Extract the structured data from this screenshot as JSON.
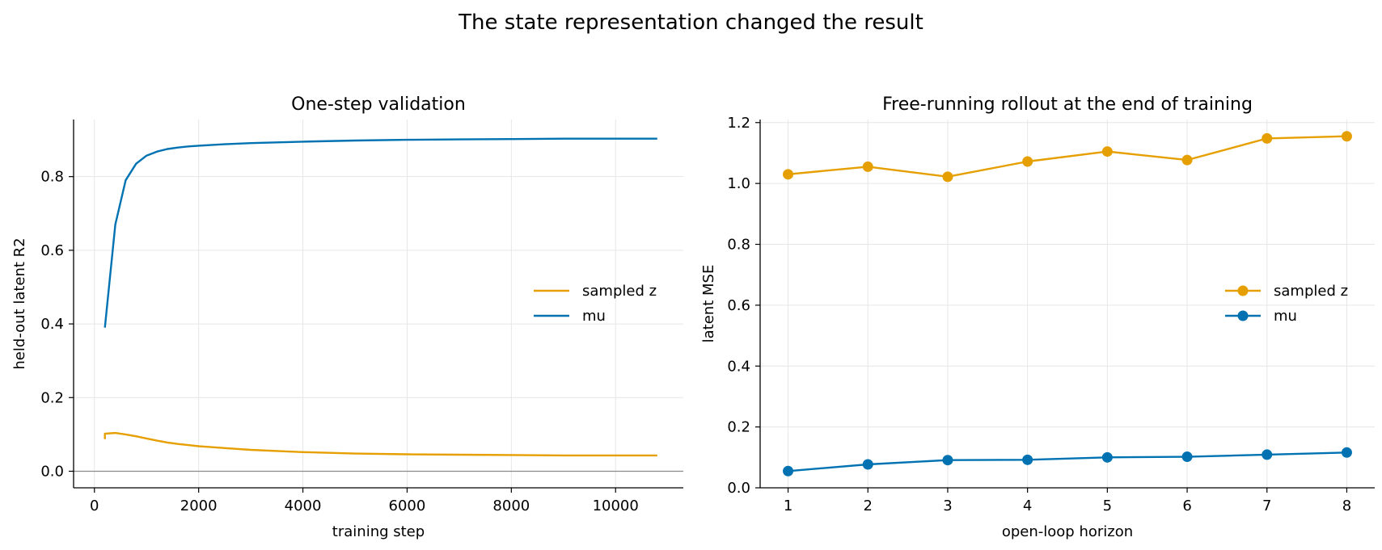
{
  "figure": {
    "suptitle": "The state representation changed the result"
  },
  "chart_data": [
    {
      "type": "line",
      "title": "One-step validation",
      "xlabel": "training step",
      "ylabel": "held-out latent R2",
      "xlim": [
        -400,
        11300
      ],
      "ylim": [
        -0.045,
        0.955
      ],
      "xticks": [
        0,
        2000,
        4000,
        6000,
        8000,
        10000
      ],
      "xtick_labels": [
        "0",
        "2000",
        "4000",
        "6000",
        "8000",
        "10000"
      ],
      "yticks": [
        0.0,
        0.2,
        0.4,
        0.6,
        0.8
      ],
      "ytick_labels": [
        "0.0",
        "0.2",
        "0.4",
        "0.6",
        "0.8"
      ],
      "grid": true,
      "reference_line_y": 0,
      "legend": "center-right",
      "series": [
        {
          "name": "sampled z",
          "color": "#E69F00",
          "x": [
            200,
            200,
            400,
            600,
            800,
            1000,
            1200,
            1400,
            1600,
            1800,
            2000,
            2500,
            3000,
            3500,
            4000,
            5000,
            6000,
            7000,
            8000,
            9000,
            10000,
            10800
          ],
          "y": [
            0.087,
            0.102,
            0.104,
            0.1,
            0.095,
            0.089,
            0.083,
            0.078,
            0.074,
            0.071,
            0.068,
            0.063,
            0.058,
            0.055,
            0.052,
            0.048,
            0.046,
            0.045,
            0.044,
            0.043,
            0.043,
            0.043
          ]
        },
        {
          "name": "mu",
          "color": "#0072B2",
          "x": [
            200,
            400,
            600,
            800,
            1000,
            1200,
            1400,
            1600,
            1800,
            2000,
            2500,
            3000,
            3500,
            4000,
            5000,
            6000,
            7000,
            8000,
            9000,
            10000,
            10800
          ],
          "y": [
            0.39,
            0.67,
            0.79,
            0.835,
            0.857,
            0.868,
            0.875,
            0.879,
            0.882,
            0.884,
            0.888,
            0.891,
            0.893,
            0.895,
            0.898,
            0.9,
            0.901,
            0.902,
            0.903,
            0.903,
            0.903
          ]
        }
      ]
    },
    {
      "type": "line",
      "title": "Free-running rollout at the end of training",
      "xlabel": "open-loop horizon",
      "ylabel": "latent MSE",
      "xlim": [
        0.65,
        8.35
      ],
      "ylim": [
        0.0,
        1.21
      ],
      "xticks": [
        1,
        2,
        3,
        4,
        5,
        6,
        7,
        8
      ],
      "xtick_labels": [
        "1",
        "2",
        "3",
        "4",
        "5",
        "6",
        "7",
        "8"
      ],
      "yticks": [
        0.0,
        0.2,
        0.4,
        0.6,
        0.8,
        1.0,
        1.2
      ],
      "ytick_labels": [
        "0.0",
        "0.2",
        "0.4",
        "0.6",
        "0.8",
        "1.0",
        "1.2"
      ],
      "grid": true,
      "markers": true,
      "legend": "center-right",
      "series": [
        {
          "name": "sampled z",
          "color": "#E69F00",
          "x": [
            1,
            2,
            3,
            4,
            5,
            6,
            7,
            8
          ],
          "y": [
            1.03,
            1.055,
            1.022,
            1.072,
            1.105,
            1.077,
            1.148,
            1.155
          ]
        },
        {
          "name": "mu",
          "color": "#0072B2",
          "x": [
            1,
            2,
            3,
            4,
            5,
            6,
            7,
            8
          ],
          "y": [
            0.055,
            0.077,
            0.091,
            0.092,
            0.1,
            0.102,
            0.109,
            0.116
          ]
        }
      ]
    }
  ]
}
